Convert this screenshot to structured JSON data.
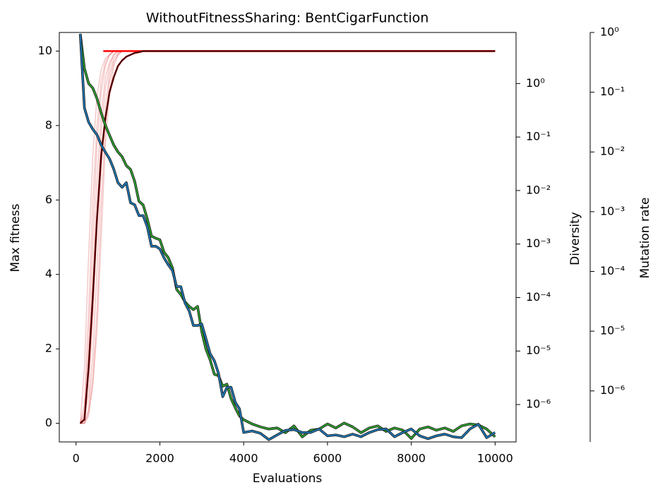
{
  "chart_data": {
    "type": "line",
    "title": "WithoutFitnessSharing: BentCigarFunction",
    "xlabel": "Evaluations",
    "ylabel": "Max fitness",
    "ylabel_color": "#d62728",
    "y2label": "Diversity",
    "y2_color": "#1f77b4",
    "y2scale": "log",
    "y3label": "Mutation rate",
    "y3_color": "#2ca02c",
    "y3scale": "log",
    "xlim": [
      -400,
      10500
    ],
    "xticks": [
      0,
      2000,
      4000,
      6000,
      8000,
      10000
    ],
    "ylim": [
      -0.5,
      10.5
    ],
    "yticks": [
      0,
      2,
      4,
      6,
      8,
      10
    ],
    "y2lim": [
      2e-07,
      9
    ],
    "y2ticks": [
      {
        "value": 1e-06,
        "label": "10⁻⁶"
      },
      {
        "value": 1e-05,
        "label": "10⁻⁵"
      },
      {
        "value": 0.0001,
        "label": "10⁻⁴"
      },
      {
        "value": 0.001,
        "label": "10⁻³"
      },
      {
        "value": 0.01,
        "label": "10⁻²"
      },
      {
        "value": 0.1,
        "label": "10⁻¹"
      },
      {
        "value": 1,
        "label": "10⁰"
      }
    ],
    "y3lim": [
      1.4e-07,
      1
    ],
    "y3ticks": [
      {
        "value": 1e-06,
        "label": "10⁻⁶"
      },
      {
        "value": 1e-05,
        "label": "10⁻⁵"
      },
      {
        "value": 0.0001,
        "label": "10⁻⁴"
      },
      {
        "value": 0.001,
        "label": "10⁻³"
      },
      {
        "value": 0.01,
        "label": "10⁻²"
      },
      {
        "value": 0.1,
        "label": "10⁻¹"
      },
      {
        "value": 1,
        "label": "10⁰"
      }
    ],
    "series": [
      {
        "axis": "y",
        "color": "#d62728",
        "opacity": 0.25,
        "width": 1.5,
        "x": [
          100,
          200,
          300,
          400,
          500,
          600,
          700,
          800,
          900,
          1000,
          1100,
          1200,
          1300,
          1400,
          1500,
          1600,
          1700,
          1800,
          1900,
          2000,
          10000
        ],
        "values": [
          0,
          1.5,
          4.5,
          7.2,
          8.8,
          9.5,
          9.8,
          9.9,
          10,
          10,
          10,
          10,
          10,
          10,
          10,
          10,
          10,
          10,
          10,
          10,
          10
        ]
      },
      {
        "axis": "y",
        "color": "#d62728",
        "opacity": 0.25,
        "width": 1.5,
        "x": [
          100,
          200,
          300,
          400,
          500,
          600,
          700,
          800,
          900,
          1000,
          1100,
          1200,
          1300,
          1400,
          1500,
          1600,
          1700,
          1800,
          1900,
          2000,
          10000
        ],
        "values": [
          0,
          0.5,
          3.0,
          6.0,
          8.0,
          9.2,
          9.7,
          9.9,
          10,
          10,
          10,
          10,
          10,
          10,
          10,
          10,
          10,
          10,
          10,
          10,
          10
        ]
      },
      {
        "axis": "y",
        "color": "#d62728",
        "opacity": 0.25,
        "width": 1.5,
        "x": [
          100,
          200,
          300,
          400,
          500,
          600,
          700,
          800,
          900,
          1000,
          1100,
          1200,
          1300,
          1400,
          1500,
          1600,
          1700,
          1800,
          1900,
          2000,
          10000
        ],
        "values": [
          0,
          0.3,
          2.2,
          5.0,
          7.5,
          8.9,
          9.6,
          9.9,
          10,
          10,
          10,
          10,
          10,
          10,
          10,
          10,
          10,
          10,
          10,
          10,
          10
        ]
      },
      {
        "axis": "y",
        "color": "#d62728",
        "opacity": 0.25,
        "width": 1.5,
        "x": [
          100,
          200,
          300,
          400,
          500,
          600,
          700,
          800,
          900,
          1000,
          1100,
          1200,
          1300,
          1400,
          1500,
          1600,
          1700,
          1800,
          1900,
          2000,
          10000
        ],
        "values": [
          0,
          0.2,
          1.5,
          4.0,
          6.5,
          8.3,
          9.3,
          9.7,
          9.9,
          10,
          10,
          10,
          10,
          10,
          10,
          10,
          10,
          10,
          10,
          10,
          10
        ]
      },
      {
        "axis": "y",
        "color": "#d62728",
        "opacity": 0.25,
        "width": 1.5,
        "x": [
          100,
          200,
          300,
          400,
          500,
          600,
          700,
          800,
          900,
          1000,
          1100,
          1200,
          1300,
          1400,
          1500,
          1600,
          1700,
          1800,
          1900,
          2000,
          10000
        ],
        "values": [
          0,
          0.1,
          0.8,
          2.8,
          5.5,
          7.8,
          9.0,
          9.6,
          9.9,
          10,
          10,
          10,
          10,
          10,
          10,
          10,
          10,
          10,
          10,
          10,
          10
        ]
      },
      {
        "axis": "y",
        "color": "#d62728",
        "opacity": 0.25,
        "width": 1.5,
        "x": [
          100,
          200,
          300,
          400,
          500,
          600,
          700,
          800,
          900,
          1000,
          1100,
          1200,
          1300,
          1400,
          1500,
          1600,
          1700,
          1800,
          1900,
          2000,
          10000
        ],
        "values": [
          0,
          0,
          0.4,
          1.8,
          4.2,
          6.8,
          8.5,
          9.4,
          9.8,
          9.95,
          10,
          10,
          10,
          10,
          10,
          10,
          10,
          10,
          10,
          10,
          10
        ]
      },
      {
        "axis": "y",
        "color": "#d62728",
        "opacity": 0.25,
        "width": 1.5,
        "x": [
          100,
          200,
          300,
          400,
          500,
          600,
          700,
          800,
          900,
          1000,
          1100,
          1200,
          1300,
          1400,
          1500,
          1600,
          1700,
          1800,
          1900,
          2000,
          10000
        ],
        "values": [
          0,
          0,
          0.3,
          1.2,
          3.0,
          5.8,
          8.0,
          9.2,
          9.7,
          9.9,
          10,
          10,
          10,
          10,
          10,
          10,
          10,
          10,
          10,
          10,
          10
        ]
      },
      {
        "axis": "y",
        "color": "#d62728",
        "opacity": 0.25,
        "width": 1.5,
        "x": [
          100,
          200,
          300,
          400,
          500,
          600,
          700,
          800,
          900,
          1000,
          1100,
          1200,
          1300,
          1400,
          1500,
          1600,
          1700,
          1800,
          1900,
          2000,
          10000
        ],
        "values": [
          0,
          0,
          0.2,
          1.0,
          2.5,
          5.0,
          7.5,
          8.9,
          9.6,
          9.9,
          10,
          10,
          10,
          10,
          10,
          10,
          10,
          10,
          10,
          10,
          10
        ]
      },
      {
        "axis": "y",
        "color": "#ff0000",
        "opacity": 1,
        "width": 2.5,
        "x": [
          650,
          10000
        ],
        "values": [
          10,
          10
        ]
      },
      {
        "axis": "y",
        "color": "#8b0000",
        "opacity": 1,
        "width": 2.5,
        "x": [
          100,
          200,
          300,
          400,
          500,
          600,
          700,
          800,
          900,
          1000,
          1100,
          1200,
          1300,
          1400,
          1500,
          1600,
          1700,
          1800,
          1900,
          2000,
          10000
        ],
        "values": [
          0,
          0.1,
          1.5,
          3.4,
          5.5,
          7.2,
          8.2,
          8.9,
          9.3,
          9.6,
          9.75,
          9.85,
          9.9,
          9.95,
          9.97,
          10,
          10,
          10,
          10,
          10,
          10
        ]
      },
      {
        "axis": "y",
        "color": "#000000",
        "opacity": 1,
        "width": 0.8,
        "x": [
          100,
          200,
          300,
          400,
          500,
          600,
          700,
          800,
          900,
          1000,
          1100,
          1200,
          1300,
          1400,
          1500,
          1600,
          1700,
          1800,
          1900,
          2000,
          10000
        ],
        "values": [
          0,
          0.1,
          1.5,
          3.4,
          5.5,
          7.2,
          8.2,
          8.9,
          9.3,
          9.6,
          9.75,
          9.85,
          9.9,
          9.95,
          9.97,
          10,
          10,
          10,
          10,
          10,
          10
        ]
      },
      {
        "axis": "y3",
        "color": "#2ca02c",
        "opacity": 1,
        "width": 2,
        "outline": true,
        "x": [
          100,
          200,
          300,
          400,
          500,
          600,
          700,
          800,
          900,
          1000,
          1100,
          1200,
          1300,
          1400,
          1500,
          1600,
          1700,
          1800,
          1900,
          2000,
          2100,
          2200,
          2300,
          2400,
          2500,
          2600,
          2700,
          2800,
          2900,
          3000,
          3100,
          3200,
          3300,
          3400,
          3500,
          3600,
          3700,
          3800,
          3900,
          4000,
          4200,
          4400,
          4600,
          4800,
          5000,
          5200,
          5400,
          5600,
          5800,
          6000,
          6200,
          6400,
          6600,
          6800,
          7000,
          7200,
          7400,
          7600,
          7800,
          8000,
          8200,
          8400,
          8600,
          8800,
          9000,
          9200,
          9400,
          9600,
          9800,
          10000
        ],
        "values": [
          0.95,
          0.25,
          0.14,
          0.117,
          0.078,
          0.045,
          0.028,
          0.019,
          0.013,
          0.01,
          0.0083,
          0.0059,
          0.0051,
          0.0032,
          0.0015,
          0.0013,
          0.00076,
          0.00039,
          0.00036,
          0.00034,
          0.00021,
          0.00017,
          0.000115,
          5e-05,
          4.1e-05,
          3.1e-05,
          2.6e-05,
          2.3e-05,
          2.6e-05,
          9.8e-06,
          5e-06,
          3.3e-06,
          1.9e-06,
          1.8e-06,
          1.2e-06,
          1.3e-06,
          7.4e-07,
          5.2e-07,
          3.8e-07,
          3.3e-07,
          2.8e-07,
          2.5e-07,
          2.3e-07,
          2.4e-07,
          2e-07,
          2.6e-07,
          1.7e-07,
          2.2e-07,
          2.3e-07,
          2.8e-07,
          2.4e-07,
          2.9e-07,
          2.5e-07,
          2e-07,
          2.4e-07,
          2.6e-07,
          2.1e-07,
          2.4e-07,
          2.2e-07,
          1.6e-07,
          2.3e-07,
          2.5e-07,
          2.2e-07,
          2.4e-07,
          2.1e-07,
          2.6e-07,
          2.8e-07,
          2.7e-07,
          2.3e-07,
          1.7e-07
        ]
      },
      {
        "axis": "y2",
        "color": "#1f77b4",
        "opacity": 1,
        "width": 2,
        "outline": true,
        "x": [
          100,
          200,
          300,
          400,
          500,
          600,
          700,
          800,
          900,
          1000,
          1100,
          1200,
          1300,
          1400,
          1500,
          1600,
          1700,
          1800,
          1900,
          2000,
          2100,
          2200,
          2300,
          2400,
          2500,
          2600,
          2700,
          2800,
          2900,
          3000,
          3100,
          3200,
          3300,
          3400,
          3500,
          3600,
          3700,
          3800,
          3900,
          4000,
          4200,
          4400,
          4600,
          4800,
          5000,
          5200,
          5400,
          5600,
          5800,
          6000,
          6200,
          6400,
          6600,
          6800,
          7000,
          7200,
          7400,
          7600,
          7800,
          8000,
          8200,
          8400,
          8600,
          8800,
          9000,
          9200,
          9400,
          9600,
          9800,
          10000
        ],
        "values": [
          8.4,
          0.35,
          0.19,
          0.14,
          0.11,
          0.071,
          0.052,
          0.039,
          0.025,
          0.014,
          0.0115,
          0.014,
          0.0059,
          0.0054,
          0.0034,
          0.0034,
          0.0021,
          0.00091,
          0.00091,
          0.00081,
          0.00055,
          0.00041,
          0.00032,
          0.00016,
          0.00016,
          7.9e-05,
          5.6e-05,
          3e-05,
          3e-05,
          3.2e-05,
          1.7e-05,
          8.9e-06,
          6.6e-06,
          3.8e-06,
          1.4e-06,
          2.1e-06,
          2.1e-06,
          1.1e-06,
          8.3e-07,
          3e-07,
          3.2e-07,
          2.9e-07,
          2.2e-07,
          2.7e-07,
          3.3e-07,
          3.4e-07,
          3e-07,
          3e-07,
          3.5e-07,
          2.6e-07,
          2.7e-07,
          2.5e-07,
          2.8e-07,
          2.5e-07,
          3e-07,
          3.4e-07,
          3.5e-07,
          2.5e-07,
          3e-07,
          3.5e-07,
          2.6e-07,
          2.3e-07,
          2.6e-07,
          2.8e-07,
          2.5e-07,
          2.4e-07,
          3.5e-07,
          4.3e-07,
          2.4e-07,
          3e-07
        ]
      }
    ]
  }
}
